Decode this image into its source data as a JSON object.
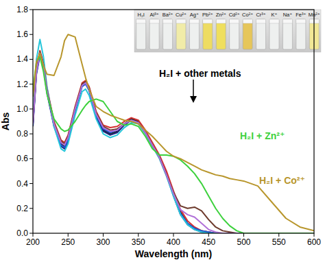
{
  "chart_data": {
    "type": "line",
    "xlabel": "Wavelength (nm)",
    "ylabel": "Abs",
    "xlim": [
      200,
      600
    ],
    "xticks": [
      200,
      250,
      300,
      350,
      400,
      450,
      500,
      550,
      600
    ],
    "ylim": [
      0,
      1.8
    ],
    "yticks": [
      {
        "value": 0,
        "label": "0.0"
      },
      0.2,
      0.4,
      0.6,
      0.8,
      {
        "value": 1,
        "label": "1.0"
      },
      1.2,
      1.4,
      1.6,
      1.8
    ],
    "grid": false,
    "annotations": [
      "H₂I + other metals"
    ],
    "inset": {
      "labels": [
        "H₂I",
        "Al³⁺",
        "Ba²⁺",
        "Cu²⁺",
        "Ag⁺",
        "Pb²⁺",
        "Zn²⁺",
        "Cd²⁺",
        "Co²⁺",
        "Cr³⁺",
        "K⁺",
        "Na⁺",
        "Fe³⁺",
        "Mn²⁺"
      ],
      "colors": [
        "#eef0ef",
        "#eef0ef",
        "#eef0ef",
        "#f1eca8",
        "#eef0ef",
        "#eedc62",
        "#efdf5e",
        "#eef0ef",
        "#e6c65a",
        "#eef0ef",
        "#eef0ef",
        "#eef0ef",
        "#eef0ef",
        "#f2e896"
      ]
    },
    "x": [
      200,
      205,
      210,
      215,
      220,
      230,
      240,
      245,
      250,
      260,
      270,
      275,
      280,
      290,
      300,
      310,
      320,
      330,
      340,
      350,
      360,
      370,
      380,
      390,
      400,
      410,
      420,
      430,
      440,
      450,
      460,
      470,
      480,
      490,
      500,
      520,
      540,
      560,
      580,
      600
    ],
    "series": [
      {
        "color": "#222222",
        "values": [
          0.88,
          1.3,
          1.45,
          1.35,
          1.15,
          0.88,
          0.72,
          0.7,
          0.76,
          1.0,
          1.2,
          1.22,
          1.16,
          0.95,
          0.83,
          0.8,
          0.82,
          0.88,
          0.92,
          0.9,
          0.82,
          0.72,
          0.62,
          0.48,
          0.32,
          0.17,
          0.08,
          0.04,
          0.02,
          0.01,
          0,
          0,
          0,
          0,
          0,
          0,
          0,
          0,
          0,
          0
        ]
      },
      {
        "color": "#1a237e",
        "values": [
          0.86,
          1.28,
          1.43,
          1.33,
          1.13,
          0.86,
          0.7,
          0.68,
          0.74,
          0.98,
          1.19,
          1.21,
          1.15,
          0.94,
          0.82,
          0.79,
          0.81,
          0.87,
          0.91,
          0.89,
          0.81,
          0.71,
          0.61,
          0.47,
          0.3,
          0.15,
          0.07,
          0.03,
          0.01,
          0,
          0,
          0,
          0,
          0,
          0,
          0,
          0,
          0,
          0,
          0
        ]
      },
      {
        "color": "#d32f2f",
        "values": [
          0.9,
          1.32,
          1.47,
          1.37,
          1.17,
          0.9,
          0.75,
          0.73,
          0.79,
          1.02,
          1.21,
          1.23,
          1.18,
          0.98,
          0.87,
          0.85,
          0.86,
          0.9,
          0.93,
          0.91,
          0.83,
          0.73,
          0.63,
          0.5,
          0.34,
          0.19,
          0.1,
          0.05,
          0.02,
          0.01,
          0,
          0,
          0,
          0,
          0,
          0,
          0,
          0,
          0,
          0
        ]
      },
      {
        "color": "#1e56d6",
        "values": [
          0.87,
          1.29,
          1.44,
          1.34,
          1.14,
          0.87,
          0.71,
          0.69,
          0.75,
          0.99,
          1.18,
          1.2,
          1.15,
          0.95,
          0.84,
          0.81,
          0.83,
          0.88,
          0.91,
          0.89,
          0.81,
          0.71,
          0.61,
          0.47,
          0.31,
          0.16,
          0.08,
          0.04,
          0.02,
          0.01,
          0,
          0,
          0,
          0,
          0,
          0,
          0,
          0,
          0,
          0
        ]
      },
      {
        "color": "#26c6da",
        "values": [
          0.92,
          1.4,
          1.56,
          1.42,
          1.18,
          0.86,
          0.68,
          0.66,
          0.72,
          0.95,
          1.14,
          1.16,
          1.11,
          0.92,
          0.8,
          0.77,
          0.79,
          0.85,
          0.89,
          0.88,
          0.8,
          0.7,
          0.6,
          0.46,
          0.3,
          0.15,
          0.07,
          0.03,
          0.01,
          0,
          0,
          0,
          0,
          0,
          0,
          0,
          0,
          0,
          0,
          0
        ]
      },
      {
        "color": "#6d3a2c",
        "values": [
          0.89,
          1.31,
          1.46,
          1.36,
          1.16,
          0.89,
          0.74,
          0.72,
          0.78,
          1.01,
          1.2,
          1.22,
          1.17,
          0.97,
          0.86,
          0.83,
          0.84,
          0.88,
          0.91,
          0.89,
          0.81,
          0.71,
          0.61,
          0.47,
          0.33,
          0.22,
          0.2,
          0.21,
          0.18,
          0.11,
          0.05,
          0.02,
          0.01,
          0,
          0,
          0,
          0,
          0,
          0,
          0
        ]
      },
      {
        "color": "#b070d8",
        "values": [
          0.88,
          1.3,
          1.45,
          1.35,
          1.15,
          0.88,
          0.73,
          0.71,
          0.77,
          1.0,
          1.19,
          1.21,
          1.16,
          0.96,
          0.85,
          0.82,
          0.83,
          0.88,
          0.91,
          0.89,
          0.81,
          0.71,
          0.61,
          0.47,
          0.32,
          0.19,
          0.15,
          0.13,
          0.08,
          0.03,
          0.01,
          0,
          0,
          0,
          0,
          0,
          0,
          0,
          0,
          0
        ]
      },
      {
        "name": "H₂I + Zn²⁺",
        "color": "#3dd13d",
        "values": [
          1.15,
          1.38,
          1.42,
          1.3,
          1.12,
          0.92,
          0.84,
          0.82,
          0.83,
          0.9,
          0.99,
          1.03,
          1.06,
          1.08,
          1.06,
          0.98,
          0.9,
          0.87,
          0.88,
          0.86,
          0.78,
          0.68,
          0.63,
          0.63,
          0.62,
          0.59,
          0.54,
          0.48,
          0.4,
          0.3,
          0.2,
          0.12,
          0.06,
          0.02,
          0,
          0,
          0,
          0,
          0,
          0
        ]
      },
      {
        "name": "H₂I + Co²⁺",
        "color": "#b8962c",
        "values": [
          1.1,
          1.38,
          1.45,
          1.35,
          1.28,
          1.27,
          1.42,
          1.55,
          1.6,
          1.58,
          1.36,
          1.25,
          1.16,
          1.02,
          0.98,
          0.95,
          0.93,
          0.91,
          0.9,
          0.88,
          0.83,
          0.78,
          0.72,
          0.66,
          0.62,
          0.6,
          0.57,
          0.54,
          0.51,
          0.49,
          0.47,
          0.46,
          0.44,
          0.43,
          0.42,
          0.38,
          0.25,
          0.12,
          0.05,
          0.02
        ]
      }
    ]
  }
}
